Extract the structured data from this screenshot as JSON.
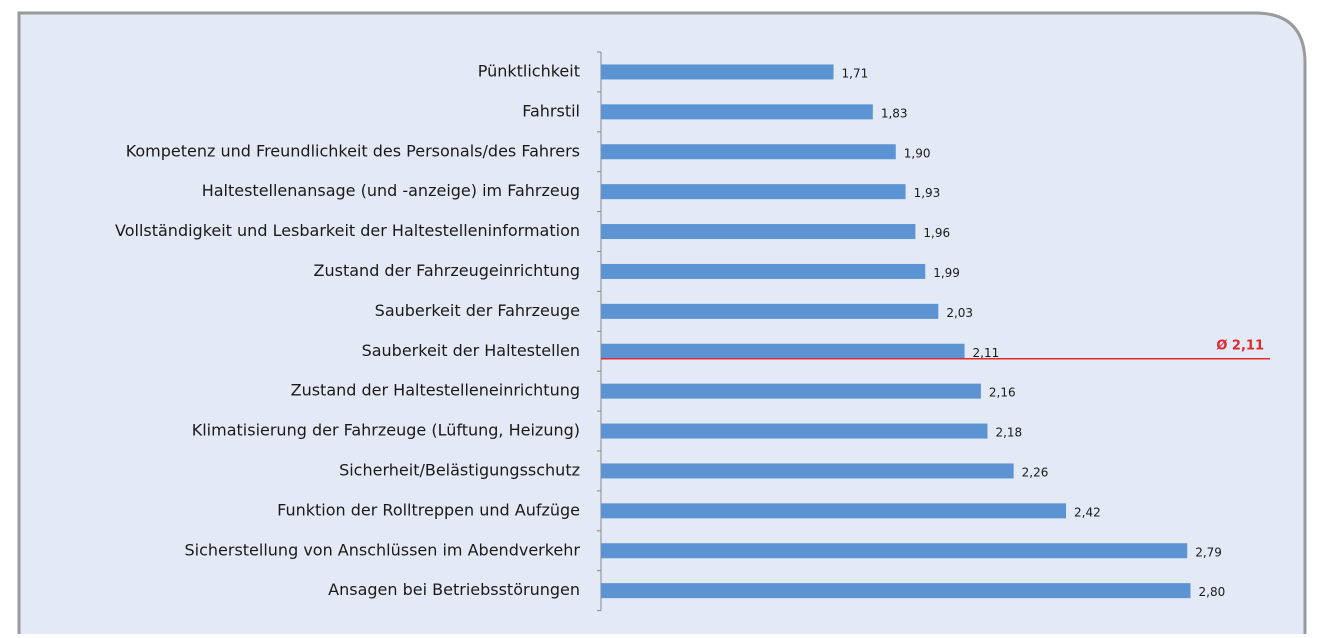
{
  "chart_data": {
    "type": "bar",
    "orientation": "horizontal",
    "categories": [
      "Pünktlichkeit",
      "Fahrstil",
      "Kompetenz und Freundlichkeit des Personals/des Fahrers",
      "Haltestellenansage (und -anzeige) im Fahrzeug",
      "Vollständigkeit und Lesbarkeit der Haltestelleninformation",
      "Zustand der Fahrzeugeinrichtung",
      "Sauberkeit der Fahrzeuge",
      "Sauberkeit der Haltestellen",
      "Zustand der Haltestelleneinrichtung",
      "Klimatisierung der Fahrzeuge (Lüftung, Heizung)",
      "Sicherheit/Belästigungsschutz",
      "Funktion der Rolltreppen und Aufzüge",
      "Sicherstellung von Anschlüssen im Abendverkehr",
      "Ansagen bei Betriebsstörungen"
    ],
    "values": [
      1.71,
      1.83,
      1.9,
      1.93,
      1.96,
      1.99,
      2.03,
      2.11,
      2.16,
      2.18,
      2.26,
      2.42,
      2.79,
      2.8
    ],
    "value_labels": [
      "1,71",
      "1,83",
      "1,90",
      "1,93",
      "1,96",
      "1,99",
      "2,03",
      "2,11",
      "2,16",
      "2,18",
      "2,26",
      "2,42",
      "2,79",
      "2,80"
    ],
    "color": "#5b93d3",
    "xlim": [
      1,
      3
    ],
    "reference_line": {
      "value": 2.11,
      "label": "Ø 2,11",
      "color": "#e0282e"
    }
  }
}
